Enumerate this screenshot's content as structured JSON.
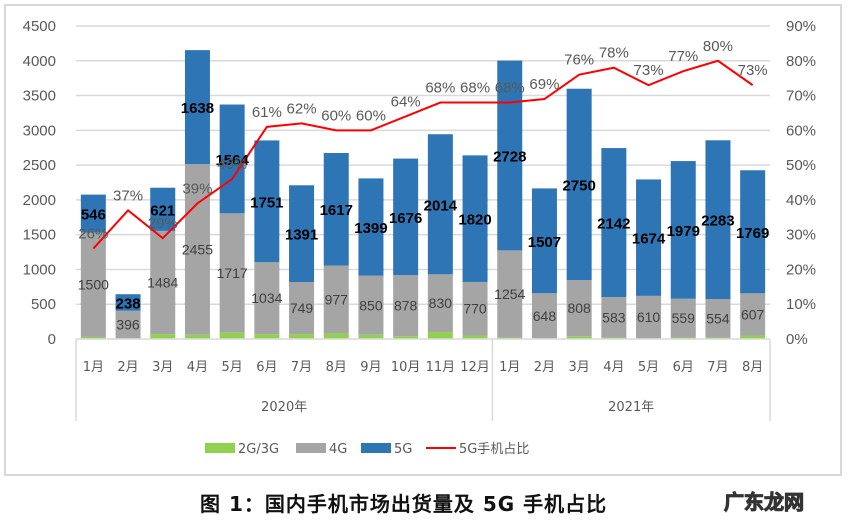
{
  "chart_data": {
    "type": "bar",
    "subtype": "stacked-bar-with-line",
    "title": "图 1：国内手机市场出货量及 5G 手机占比",
    "groups": [
      {
        "label": "2020年",
        "categories": [
          "1月",
          "2月",
          "3月",
          "4月",
          "5月",
          "6月",
          "7月",
          "8月",
          "9月",
          "10月",
          "11月",
          "12月"
        ]
      },
      {
        "label": "2021年",
        "categories": [
          "1月",
          "2月",
          "3月",
          "4月",
          "5月",
          "6月",
          "7月",
          "8月"
        ]
      }
    ],
    "categories": [
      "2020-1月",
      "2020-2月",
      "2020-3月",
      "2020-4月",
      "2020-5月",
      "2020-6月",
      "2020-7月",
      "2020-8月",
      "2020-9月",
      "2020-10月",
      "2020-11月",
      "2020-12月",
      "2021-1月",
      "2021-2月",
      "2021-3月",
      "2021-4月",
      "2021-5月",
      "2021-6月",
      "2021-7月",
      "2021-8月"
    ],
    "series": [
      {
        "name": "2G/3G",
        "color": "#92d050",
        "axis": "left",
        "values": [
          30,
          10,
          70,
          60,
          90,
          70,
          70,
          80,
          60,
          40,
          100,
          50,
          20,
          10,
          40,
          20,
          10,
          20,
          20,
          50
        ]
      },
      {
        "name": "4G",
        "color": "#a5a5a5",
        "axis": "left",
        "values": [
          1500,
          396,
          1484,
          2455,
          1717,
          1034,
          749,
          977,
          850,
          878,
          830,
          770,
          1254,
          648,
          808,
          583,
          610,
          559,
          554,
          607
        ]
      },
      {
        "name": "5G",
        "color": "#2e75b6",
        "axis": "left",
        "values": [
          546,
          238,
          621,
          1638,
          1564,
          1751,
          1391,
          1617,
          1399,
          1676,
          2014,
          1820,
          2728,
          1507,
          2750,
          2142,
          1674,
          1979,
          2283,
          1769
        ]
      },
      {
        "name": "5G手机占比",
        "color": "#ff0000",
        "axis": "right",
        "type": "line",
        "values": [
          26,
          37,
          29,
          39,
          46,
          61,
          62,
          60,
          60,
          64,
          68,
          68,
          68,
          69,
          76,
          78,
          73,
          77,
          80,
          73
        ],
        "unit": "%"
      }
    ],
    "ylabel_left": "",
    "ylim_left": [
      0,
      4500
    ],
    "yticks_left": [
      0,
      500,
      1000,
      1500,
      2000,
      2500,
      3000,
      3500,
      4000,
      4500
    ],
    "ylabel_right": "",
    "ylim_right": [
      0,
      90
    ],
    "yticks_right": [
      "0%",
      "10%",
      "20%",
      "30%",
      "40%",
      "50%",
      "60%",
      "70%",
      "80%",
      "90%"
    ],
    "grid": true,
    "legend_position": "bottom",
    "legend": [
      "2G/3G",
      "4G",
      "5G",
      "5G手机占比"
    ]
  },
  "caption": "图 1：国内手机市场出货量及 5G 手机占比",
  "watermark": "广东龙网"
}
